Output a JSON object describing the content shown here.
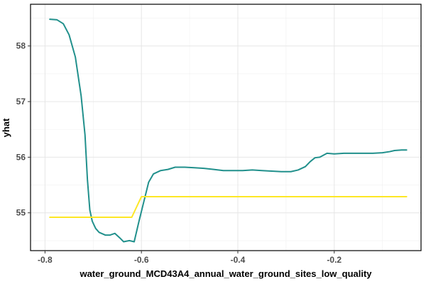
{
  "chart_data": {
    "type": "line",
    "xlabel": "water_ground_MCD43A4_annual_water_ground_sites_low_quality",
    "ylabel": "yhat",
    "xlim": [
      -0.83,
      -0.02
    ],
    "ylim": [
      54.32,
      58.75
    ],
    "x_ticks": [
      -0.8,
      -0.6,
      -0.4,
      -0.2
    ],
    "x_tick_labels": [
      "-0.8",
      "-0.6",
      "-0.4",
      "-0.2"
    ],
    "y_ticks": [
      55,
      56,
      57,
      58
    ],
    "y_tick_labels": [
      "55",
      "56",
      "57",
      "58"
    ],
    "grid": true,
    "legend": "none",
    "series": [
      {
        "color": "#21908c",
        "points": [
          [
            -0.79,
            58.48
          ],
          [
            -0.775,
            58.47
          ],
          [
            -0.762,
            58.4
          ],
          [
            -0.75,
            58.2
          ],
          [
            -0.737,
            57.8
          ],
          [
            -0.725,
            57.1
          ],
          [
            -0.717,
            56.4
          ],
          [
            -0.712,
            55.6
          ],
          [
            -0.707,
            55.05
          ],
          [
            -0.702,
            54.85
          ],
          [
            -0.695,
            54.72
          ],
          [
            -0.688,
            54.65
          ],
          [
            -0.675,
            54.6
          ],
          [
            -0.665,
            54.6
          ],
          [
            -0.655,
            54.63
          ],
          [
            -0.645,
            54.55
          ],
          [
            -0.637,
            54.48
          ],
          [
            -0.625,
            54.5
          ],
          [
            -0.615,
            54.48
          ],
          [
            -0.605,
            54.85
          ],
          [
            -0.595,
            55.2
          ],
          [
            -0.585,
            55.55
          ],
          [
            -0.575,
            55.7
          ],
          [
            -0.56,
            55.76
          ],
          [
            -0.545,
            55.78
          ],
          [
            -0.53,
            55.82
          ],
          [
            -0.51,
            55.82
          ],
          [
            -0.49,
            55.81
          ],
          [
            -0.47,
            55.8
          ],
          [
            -0.45,
            55.78
          ],
          [
            -0.43,
            55.76
          ],
          [
            -0.41,
            55.76
          ],
          [
            -0.39,
            55.76
          ],
          [
            -0.37,
            55.77
          ],
          [
            -0.35,
            55.76
          ],
          [
            -0.33,
            55.75
          ],
          [
            -0.31,
            55.74
          ],
          [
            -0.29,
            55.74
          ],
          [
            -0.275,
            55.77
          ],
          [
            -0.26,
            55.83
          ],
          [
            -0.25,
            55.92
          ],
          [
            -0.24,
            55.99
          ],
          [
            -0.23,
            56.0
          ],
          [
            -0.215,
            56.07
          ],
          [
            -0.2,
            56.06
          ],
          [
            -0.18,
            56.07
          ],
          [
            -0.16,
            56.07
          ],
          [
            -0.14,
            56.07
          ],
          [
            -0.12,
            56.07
          ],
          [
            -0.1,
            56.08
          ],
          [
            -0.085,
            56.1
          ],
          [
            -0.075,
            56.12
          ],
          [
            -0.06,
            56.13
          ],
          [
            -0.05,
            56.13
          ]
        ]
      },
      {
        "color": "#fde725",
        "points": [
          [
            -0.79,
            54.92
          ],
          [
            -0.62,
            54.92
          ],
          [
            -0.6,
            55.29
          ],
          [
            -0.05,
            55.29
          ]
        ]
      }
    ]
  }
}
